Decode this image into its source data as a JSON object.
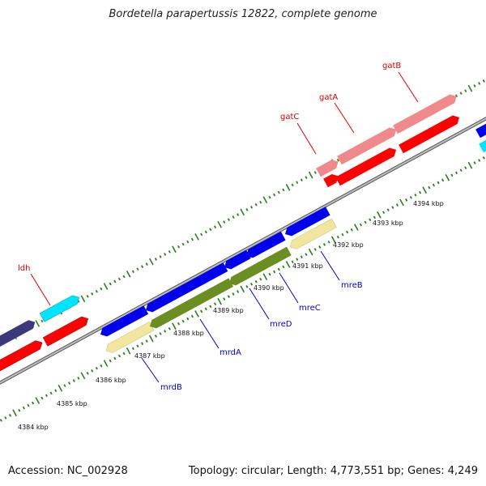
{
  "title": "Bordetella parapertussis 12822, complete genome",
  "footer": {
    "accession": "Accession: NC_002928",
    "stats": "Topology: circular; Length: 4,773,551 bp; Genes: 4,249"
  },
  "ruler_labels": [
    "4384 kbp",
    "4385 kbp",
    "4386 kbp",
    "4387 kbp",
    "4388 kbp",
    "4389 kbp",
    "4390 kbp",
    "4391 kbp",
    "4392 kbp",
    "4393 kbp",
    "4394 kbp"
  ],
  "upper_gene_labels": [
    "ldh",
    "gatC",
    "gatA",
    "gatB"
  ],
  "lower_gene_labels": [
    "mrdB",
    "mrdA",
    "mreD",
    "mreC",
    "mreB"
  ],
  "colors": {
    "backbone": "#8a8a8a",
    "tick": "#2e7d1e",
    "cds_forward": "#ff0000",
    "gene_forward": "#f08a8a",
    "cds_reverse": "#0000ee",
    "gene_reverse_light": "#f0e6a0",
    "gene_reverse_olive": "#6b8e23",
    "gene_cyan": "#00e5ff",
    "gene_dark": "#3a3a7a",
    "label_upper": "#dd0000",
    "label_lower": "#0000cc"
  }
}
